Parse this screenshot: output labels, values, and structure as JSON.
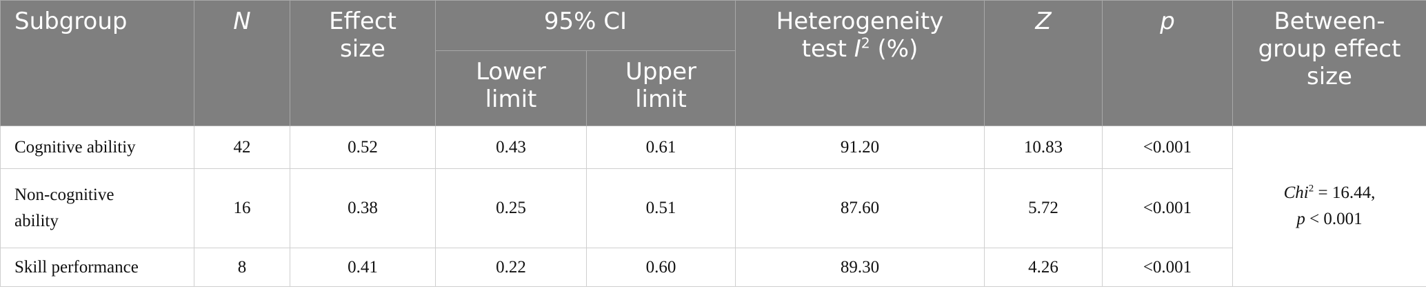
{
  "table": {
    "header": {
      "subgroup": "Subgroup",
      "n": "N",
      "effect_size": [
        "Effect",
        "size"
      ],
      "ci": "95% CI",
      "lower": [
        "Lower",
        "limit"
      ],
      "upper": [
        "Upper",
        "limit"
      ],
      "heterogeneity": {
        "lines": [
          "Heterogeneity"
        ],
        "text": "test",
        "symbol": "I",
        "sup": "2",
        "unit": "(%)"
      },
      "z": "Z",
      "p": "p",
      "between": [
        "Between-",
        "group effect",
        "size"
      ]
    },
    "rows": [
      [
        [
          "Cognitive abilitiy"
        ],
        "42",
        "0.52",
        "0.43",
        "0.61",
        "91.20",
        "10.83",
        "<0.001"
      ],
      [
        [
          "Non-cognitive",
          "ability"
        ],
        "16",
        "0.38",
        "0.25",
        "0.51",
        "87.60",
        "5.72",
        "<0.001"
      ],
      [
        [
          "Skill performance"
        ],
        "8",
        "0.41",
        "0.22",
        "0.60",
        "89.30",
        "4.26",
        "<0.001"
      ]
    ],
    "between_value": {
      "stat": "Chi",
      "sup": "2",
      "eq": "= 16.44,",
      "p": "p",
      "p_rest": "< 0.001"
    }
  }
}
